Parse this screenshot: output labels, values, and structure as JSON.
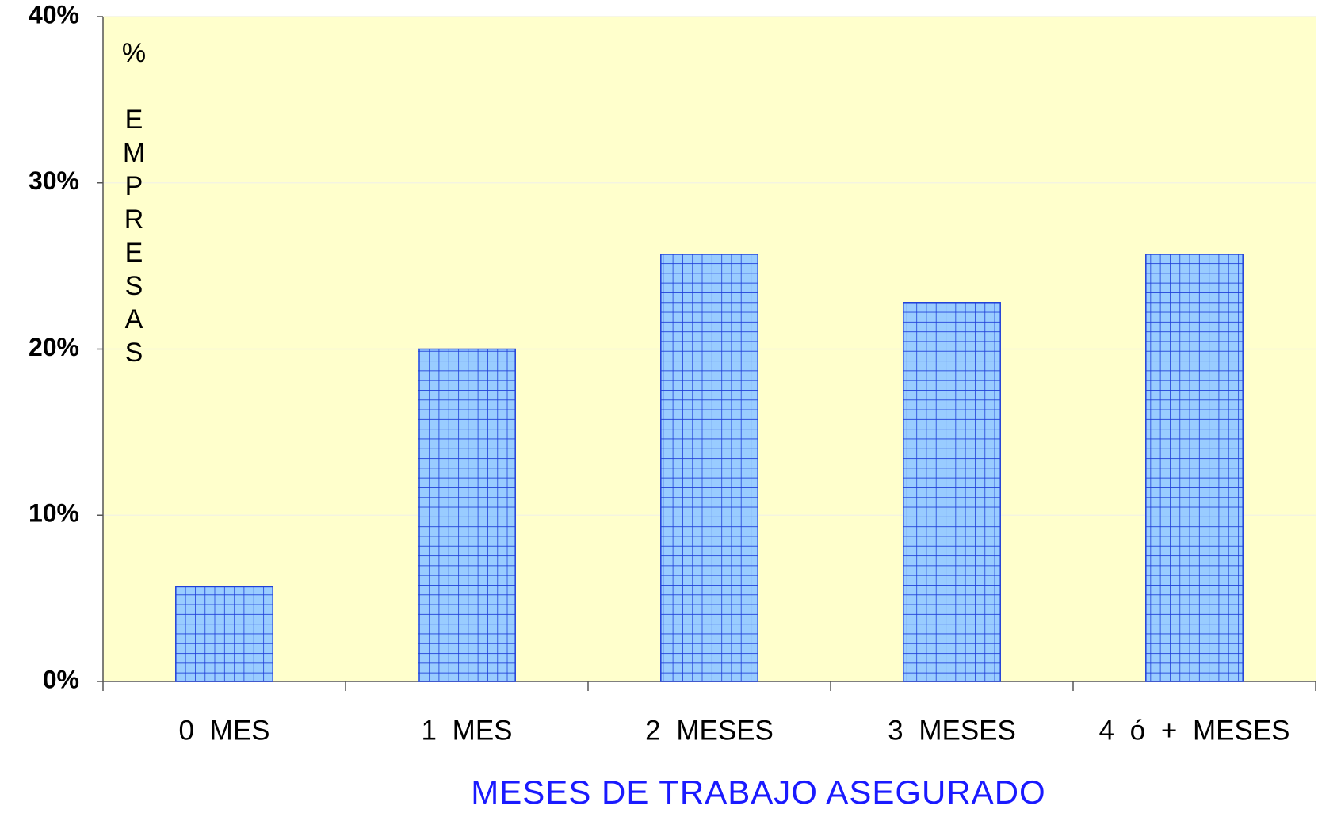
{
  "chart_data": {
    "type": "bar",
    "ylabel": "% EMPRESAS",
    "xlabel": "MESES DE TRABAJO ASEGURADO",
    "categories": [
      "0 MES",
      "1 MES",
      "2 MESES",
      "3 MESES",
      "4 ó + MESES"
    ],
    "values": [
      5.7,
      20,
      25.7,
      22.8,
      25.7
    ],
    "color": "#99ccff",
    "ylim": [
      0,
      40
    ],
    "yticks": [
      {
        "value": 0,
        "label": "0%"
      },
      {
        "value": 10,
        "label": "10%"
      },
      {
        "value": 20,
        "label": "20%"
      },
      {
        "value": 30,
        "label": "30%"
      },
      {
        "value": 40,
        "label": "40%"
      }
    ],
    "grid": true
  }
}
